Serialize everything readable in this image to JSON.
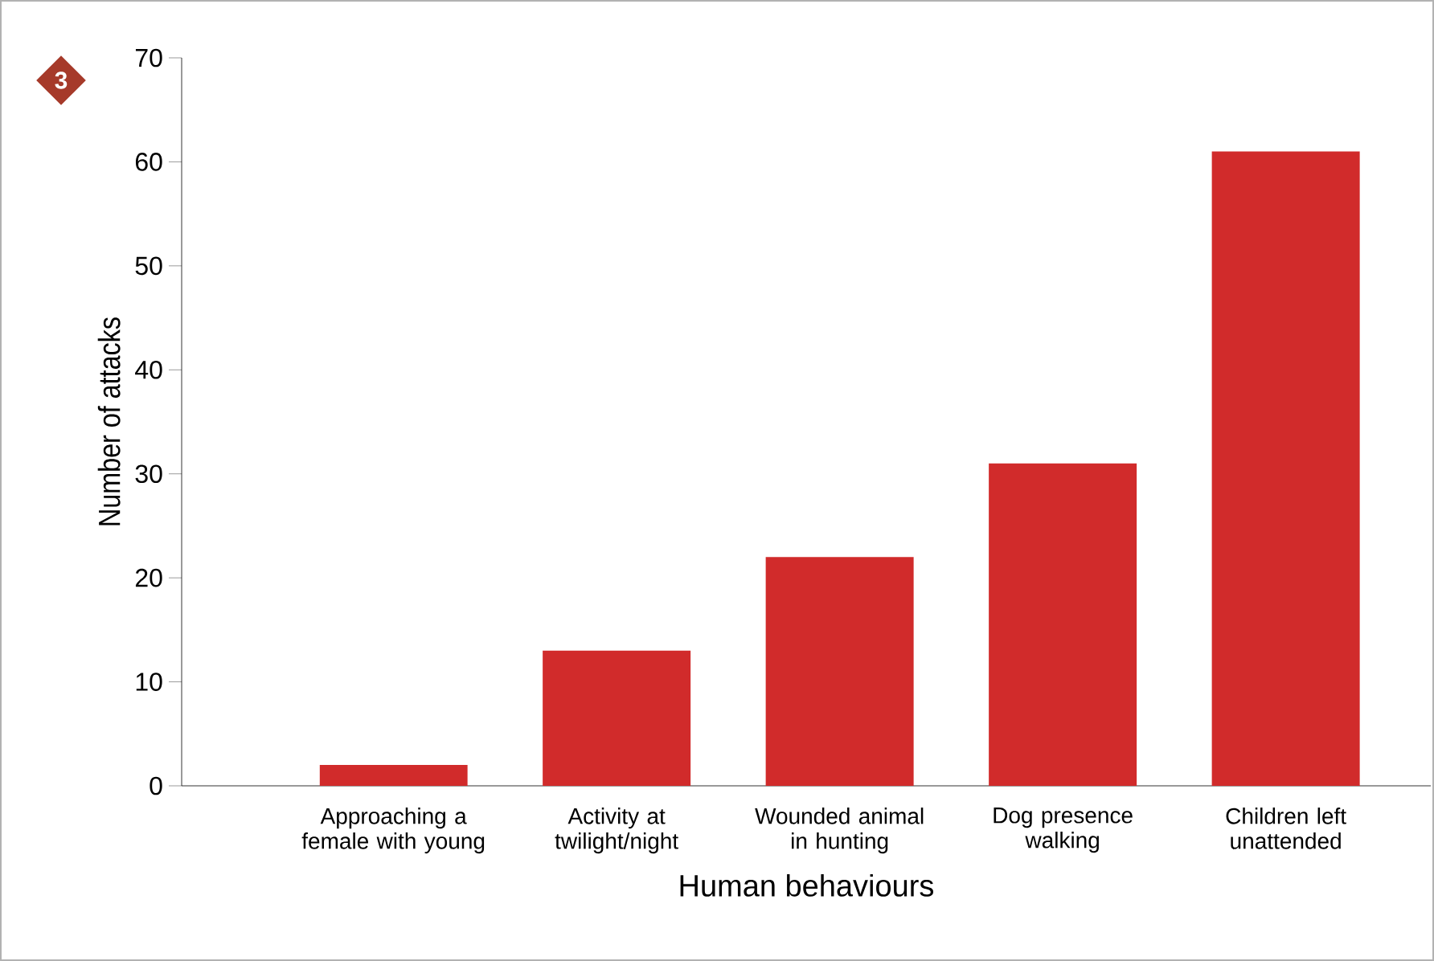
{
  "chart_data": {
    "type": "bar",
    "xlabel": "Human behaviours",
    "ylabel": "Number of attacks",
    "categories": [
      "Approaching a female with young",
      "Activity at twilight/night",
      "Wounded animal in hunting",
      "Dog presence walking",
      "Children left unattended"
    ],
    "values": [
      2,
      13,
      22,
      31,
      61
    ],
    "color": "#d12b2b",
    "ylim": [
      0,
      70
    ],
    "yticks": [
      0,
      10,
      20,
      30,
      40,
      50,
      60,
      70
    ],
    "grid": false,
    "annotations": [
      "3"
    ]
  }
}
